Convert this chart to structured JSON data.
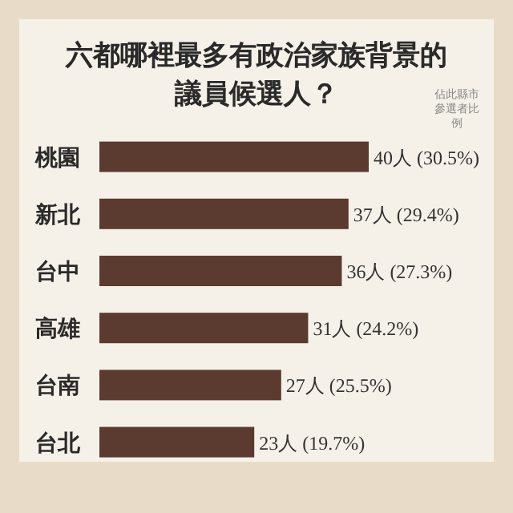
{
  "chart_data": {
    "type": "bar",
    "orientation": "horizontal",
    "title": "六都哪裡最多有政治家族背景的議員候選人？",
    "categories": [
      "桃園",
      "新北",
      "台中",
      "高雄",
      "台南",
      "台北"
    ],
    "values": [
      40,
      37,
      36,
      31,
      27,
      23
    ],
    "value_labels": [
      "40人 (30.5%)",
      "37人 (29.4%)",
      "36人 (27.3%)",
      "31人 (24.2%)",
      "27人 (25.5%)",
      "23人 (19.7%)"
    ],
    "color": "#5b3a2f",
    "annotations": [
      "佔此縣市參選者比例"
    ]
  }
}
